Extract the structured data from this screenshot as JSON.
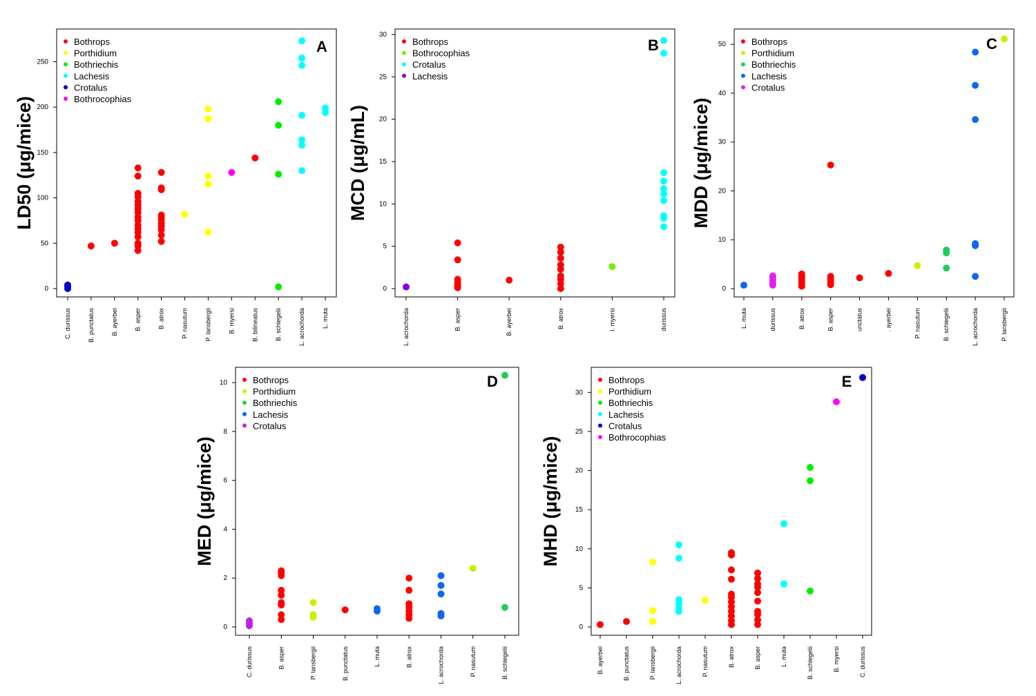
{
  "chart_data": [
    {
      "type": "scatter",
      "panel": "A",
      "ylabel": "LD50 (μg/mice)",
      "ylim": [
        0,
        280
      ],
      "yticks": [
        0,
        50,
        100,
        150,
        200,
        250
      ],
      "categories": [
        "C. durissus",
        "B. punctatus",
        "B. ayerbei",
        "B. asper",
        "B. atrox",
        "P. nasutum",
        "P. lansbergii",
        "B. myersi",
        "B. bilineatus",
        "B. schlegelii",
        "L. acrochorda",
        "L. muta"
      ],
      "legend_position": "top-left",
      "series": [
        {
          "name": "Bothrops",
          "color": "#ff0000",
          "points": [
            [
              1,
              47
            ],
            [
              2,
              50
            ],
            [
              3,
              42
            ],
            [
              3,
              47
            ],
            [
              3,
              50
            ],
            [
              3,
              57
            ],
            [
              3,
              62
            ],
            [
              3,
              66
            ],
            [
              3,
              70
            ],
            [
              3,
              75
            ],
            [
              3,
              79
            ],
            [
              3,
              84
            ],
            [
              3,
              88
            ],
            [
              3,
              92
            ],
            [
              3,
              96
            ],
            [
              3,
              101
            ],
            [
              3,
              105
            ],
            [
              3,
              124
            ],
            [
              3,
              133
            ],
            [
              4,
              52
            ],
            [
              4,
              59
            ],
            [
              4,
              65
            ],
            [
              4,
              69
            ],
            [
              4,
              72
            ],
            [
              4,
              76
            ],
            [
              4,
              79
            ],
            [
              4,
              81
            ],
            [
              4,
              109
            ],
            [
              4,
              111
            ],
            [
              4,
              128
            ],
            [
              8,
              144
            ]
          ]
        },
        {
          "name": "Porthidium",
          "color": "#ffff00",
          "points": [
            [
              5,
              82
            ],
            [
              6,
              62
            ],
            [
              6,
              115
            ],
            [
              6,
              124
            ],
            [
              6,
              187
            ],
            [
              6,
              198
            ]
          ]
        },
        {
          "name": "Bothriechis",
          "color": "#00ee00",
          "points": [
            [
              9,
              2
            ],
            [
              9,
              126
            ],
            [
              9,
              180
            ],
            [
              9,
              206
            ]
          ]
        },
        {
          "name": "Lachesis",
          "color": "#00ffff",
          "points": [
            [
              10,
              130
            ],
            [
              10,
              158
            ],
            [
              10,
              164
            ],
            [
              10,
              191
            ],
            [
              10,
              246
            ],
            [
              10,
              254
            ],
            [
              10,
              273
            ],
            [
              11,
              194
            ],
            [
              11,
              199
            ]
          ]
        },
        {
          "name": "Crotalus",
          "color": "#0000cc",
          "points": [
            [
              0,
              0
            ],
            [
              0,
              2
            ],
            [
              0,
              4
            ]
          ]
        },
        {
          "name": "Bothrocophias",
          "color": "#ff00ff",
          "points": [
            [
              7,
              128
            ]
          ]
        }
      ]
    },
    {
      "type": "scatter",
      "panel": "B",
      "ylabel": "MCD (μg/mL)",
      "ylim": [
        0,
        30
      ],
      "yticks": [
        0,
        5,
        10,
        15,
        20,
        25,
        30
      ],
      "categories": [
        "L. acrochorda",
        "B. asper",
        "B. ayerbei",
        "B. atrox",
        "I. myersi",
        "durissus"
      ],
      "legend_position": "top-left",
      "series": [
        {
          "name": "Bothrops",
          "color": "#ff0000",
          "points": [
            [
              1,
              0.1
            ],
            [
              1,
              0.3
            ],
            [
              1,
              0.5
            ],
            [
              1,
              0.8
            ],
            [
              1,
              1.1
            ],
            [
              1,
              3.4
            ],
            [
              1,
              5.4
            ],
            [
              2,
              1.0
            ],
            [
              3,
              0.0
            ],
            [
              3,
              0.6
            ],
            [
              3,
              1.1
            ],
            [
              3,
              1.5
            ],
            [
              3,
              2.3
            ],
            [
              3,
              2.8
            ],
            [
              3,
              3.6
            ],
            [
              3,
              4.3
            ],
            [
              3,
              4.9
            ]
          ]
        },
        {
          "name": "Bothrocophias",
          "color": "#77ee00",
          "points": [
            [
              4,
              2.6
            ]
          ]
        },
        {
          "name": "Crotalus",
          "color": "#00ffff",
          "points": [
            [
              5,
              7.3
            ],
            [
              5,
              8.3
            ],
            [
              5,
              8.6
            ],
            [
              5,
              10.4
            ],
            [
              5,
              11.2
            ],
            [
              5,
              11.8
            ],
            [
              5,
              12.7
            ],
            [
              5,
              13.7
            ],
            [
              5,
              27.8
            ],
            [
              5,
              29.3
            ]
          ]
        },
        {
          "name": "Lachesis",
          "color": "#8800dd",
          "points": [
            [
              0,
              0.2
            ]
          ]
        }
      ]
    },
    {
      "type": "scatter",
      "panel": "C",
      "ylabel": "MDD (μg/mice)",
      "ylim": [
        0,
        52
      ],
      "yticks": [
        0,
        10,
        20,
        30,
        40,
        50
      ],
      "categories": [
        "L. muta",
        "durissus",
        "B. atrox",
        "B. asper",
        "unctatus",
        ". ayerbei",
        "P. nasutum",
        "B. schlegelii",
        "L. acrochorda",
        "P. lansbergii"
      ],
      "legend_position": "top-left",
      "series": [
        {
          "name": "Bothrops",
          "color": "#ff0000",
          "points": [
            [
              2,
              0.5
            ],
            [
              2,
              1.0
            ],
            [
              2,
              1.5
            ],
            [
              2,
              2.0
            ],
            [
              2,
              2.5
            ],
            [
              2,
              3.0
            ],
            [
              3,
              0.8
            ],
            [
              3,
              1.2
            ],
            [
              3,
              1.7
            ],
            [
              3,
              2.1
            ],
            [
              3,
              2.5
            ],
            [
              3,
              25.3
            ],
            [
              4,
              2.2
            ],
            [
              5,
              3.1
            ]
          ]
        },
        {
          "name": "Porthidium",
          "color": "#ccee00",
          "points": [
            [
              6,
              4.7
            ],
            [
              9,
              51.1
            ]
          ]
        },
        {
          "name": "Bothriechis",
          "color": "#22cc55",
          "points": [
            [
              7,
              4.2
            ],
            [
              7,
              7.3
            ],
            [
              7,
              7.9
            ]
          ]
        },
        {
          "name": "Lachesis",
          "color": "#1166ee",
          "points": [
            [
              0,
              0.7
            ],
            [
              8,
              2.5
            ],
            [
              8,
              8.8
            ],
            [
              8,
              9.2
            ],
            [
              8,
              34.6
            ],
            [
              8,
              41.6
            ],
            [
              8,
              48.4
            ]
          ]
        },
        {
          "name": "Crotalus",
          "color": "#dd22ee",
          "points": [
            [
              1,
              0.7
            ],
            [
              1,
              1.2
            ],
            [
              1,
              1.7
            ],
            [
              1,
              2.2
            ],
            [
              1,
              2.6
            ]
          ]
        }
      ]
    },
    {
      "type": "scatter",
      "panel": "D",
      "ylabel": "MED (μg/mice)",
      "ylim": [
        0,
        10.4
      ],
      "yticks": [
        0,
        2,
        4,
        6,
        8,
        10
      ],
      "categories": [
        "C. durissus",
        "B. asper",
        "P. lansbergii",
        "B. punctatus",
        "L. muta",
        "B. atrox",
        "L. acrochorda",
        "P. nasutum",
        "B. schlegelii"
      ],
      "legend_position": "top-left",
      "series": [
        {
          "name": "Bothrops",
          "color": "#ff0000",
          "points": [
            [
              1,
              0.3
            ],
            [
              1,
              0.5
            ],
            [
              1,
              0.9
            ],
            [
              1,
              1.0
            ],
            [
              1,
              1.3
            ],
            [
              1,
              1.5
            ],
            [
              1,
              2.1
            ],
            [
              1,
              2.2
            ],
            [
              1,
              2.3
            ],
            [
              3,
              0.7
            ],
            [
              5,
              0.35
            ],
            [
              5,
              0.5
            ],
            [
              5,
              0.65
            ],
            [
              5,
              0.8
            ],
            [
              5,
              0.95
            ],
            [
              5,
              1.5
            ],
            [
              5,
              2.0
            ]
          ]
        },
        {
          "name": "Porthidium",
          "color": "#ccee00",
          "points": [
            [
              2,
              0.4
            ],
            [
              2,
              0.5
            ],
            [
              2,
              1.0
            ],
            [
              7,
              2.4
            ]
          ]
        },
        {
          "name": "Bothriechis",
          "color": "#22cc55",
          "points": [
            [
              8,
              0.8
            ],
            [
              8,
              10.3
            ]
          ]
        },
        {
          "name": "Lachesis",
          "color": "#1166ee",
          "points": [
            [
              4,
              0.65
            ],
            [
              4,
              0.75
            ],
            [
              6,
              0.45
            ],
            [
              6,
              0.55
            ],
            [
              6,
              1.35
            ],
            [
              6,
              1.7
            ],
            [
              6,
              2.1
            ]
          ]
        },
        {
          "name": "Crotalus",
          "color": "#bb22ee",
          "points": [
            [
              0,
              0.05
            ],
            [
              0,
              0.15
            ],
            [
              0,
              0.25
            ]
          ]
        }
      ]
    },
    {
      "type": "scatter",
      "panel": "E",
      "ylabel": "MHD (μg/mice)",
      "ylim": [
        0,
        32.5
      ],
      "yticks": [
        0,
        5,
        10,
        15,
        20,
        25,
        30
      ],
      "categories": [
        "B. ayerbei",
        "B. punctatus",
        "P. lansbergii",
        "L. acrochorda",
        "P. nasutum",
        "B. atrox",
        "B. asper",
        "L. muta",
        "B. schlegelii",
        "B. myersi",
        "C. durissus"
      ],
      "legend_position": "top-left",
      "series": [
        {
          "name": "Bothrops",
          "color": "#ff0000",
          "points": [
            [
              0,
              0.3
            ],
            [
              1,
              0.7
            ],
            [
              5,
              0.3
            ],
            [
              5,
              0.8
            ],
            [
              5,
              1.4
            ],
            [
              5,
              2.0
            ],
            [
              5,
              2.6
            ],
            [
              5,
              3.2
            ],
            [
              5,
              3.8
            ],
            [
              5,
              4.2
            ],
            [
              5,
              6.1
            ],
            [
              5,
              7.3
            ],
            [
              5,
              9.2
            ],
            [
              5,
              9.5
            ],
            [
              6,
              0.3
            ],
            [
              6,
              0.9
            ],
            [
              6,
              1.6
            ],
            [
              6,
              2.0
            ],
            [
              6,
              3.3
            ],
            [
              6,
              4.4
            ],
            [
              6,
              5.1
            ],
            [
              6,
              5.5
            ],
            [
              6,
              6.2
            ],
            [
              6,
              6.9
            ]
          ]
        },
        {
          "name": "Porthidium",
          "color": "#ffff00",
          "points": [
            [
              2,
              0.7
            ],
            [
              2,
              2.1
            ],
            [
              2,
              8.3
            ],
            [
              4,
              3.4
            ]
          ]
        },
        {
          "name": "Bothriechis",
          "color": "#00ee00",
          "points": [
            [
              8,
              4.6
            ],
            [
              8,
              18.7
            ],
            [
              8,
              20.4
            ]
          ]
        },
        {
          "name": "Lachesis",
          "color": "#00ffff",
          "points": [
            [
              3,
              2.0
            ],
            [
              3,
              2.5
            ],
            [
              3,
              3.0
            ],
            [
              3,
              3.5
            ],
            [
              3,
              8.8
            ],
            [
              3,
              10.5
            ],
            [
              7,
              5.5
            ],
            [
              7,
              13.2
            ]
          ]
        },
        {
          "name": "Crotalus",
          "color": "#0000cc",
          "points": [
            [
              10,
              31.9
            ]
          ]
        },
        {
          "name": "Bothrocophias",
          "color": "#ff00ff",
          "points": [
            [
              9,
              28.8
            ]
          ]
        }
      ]
    }
  ]
}
